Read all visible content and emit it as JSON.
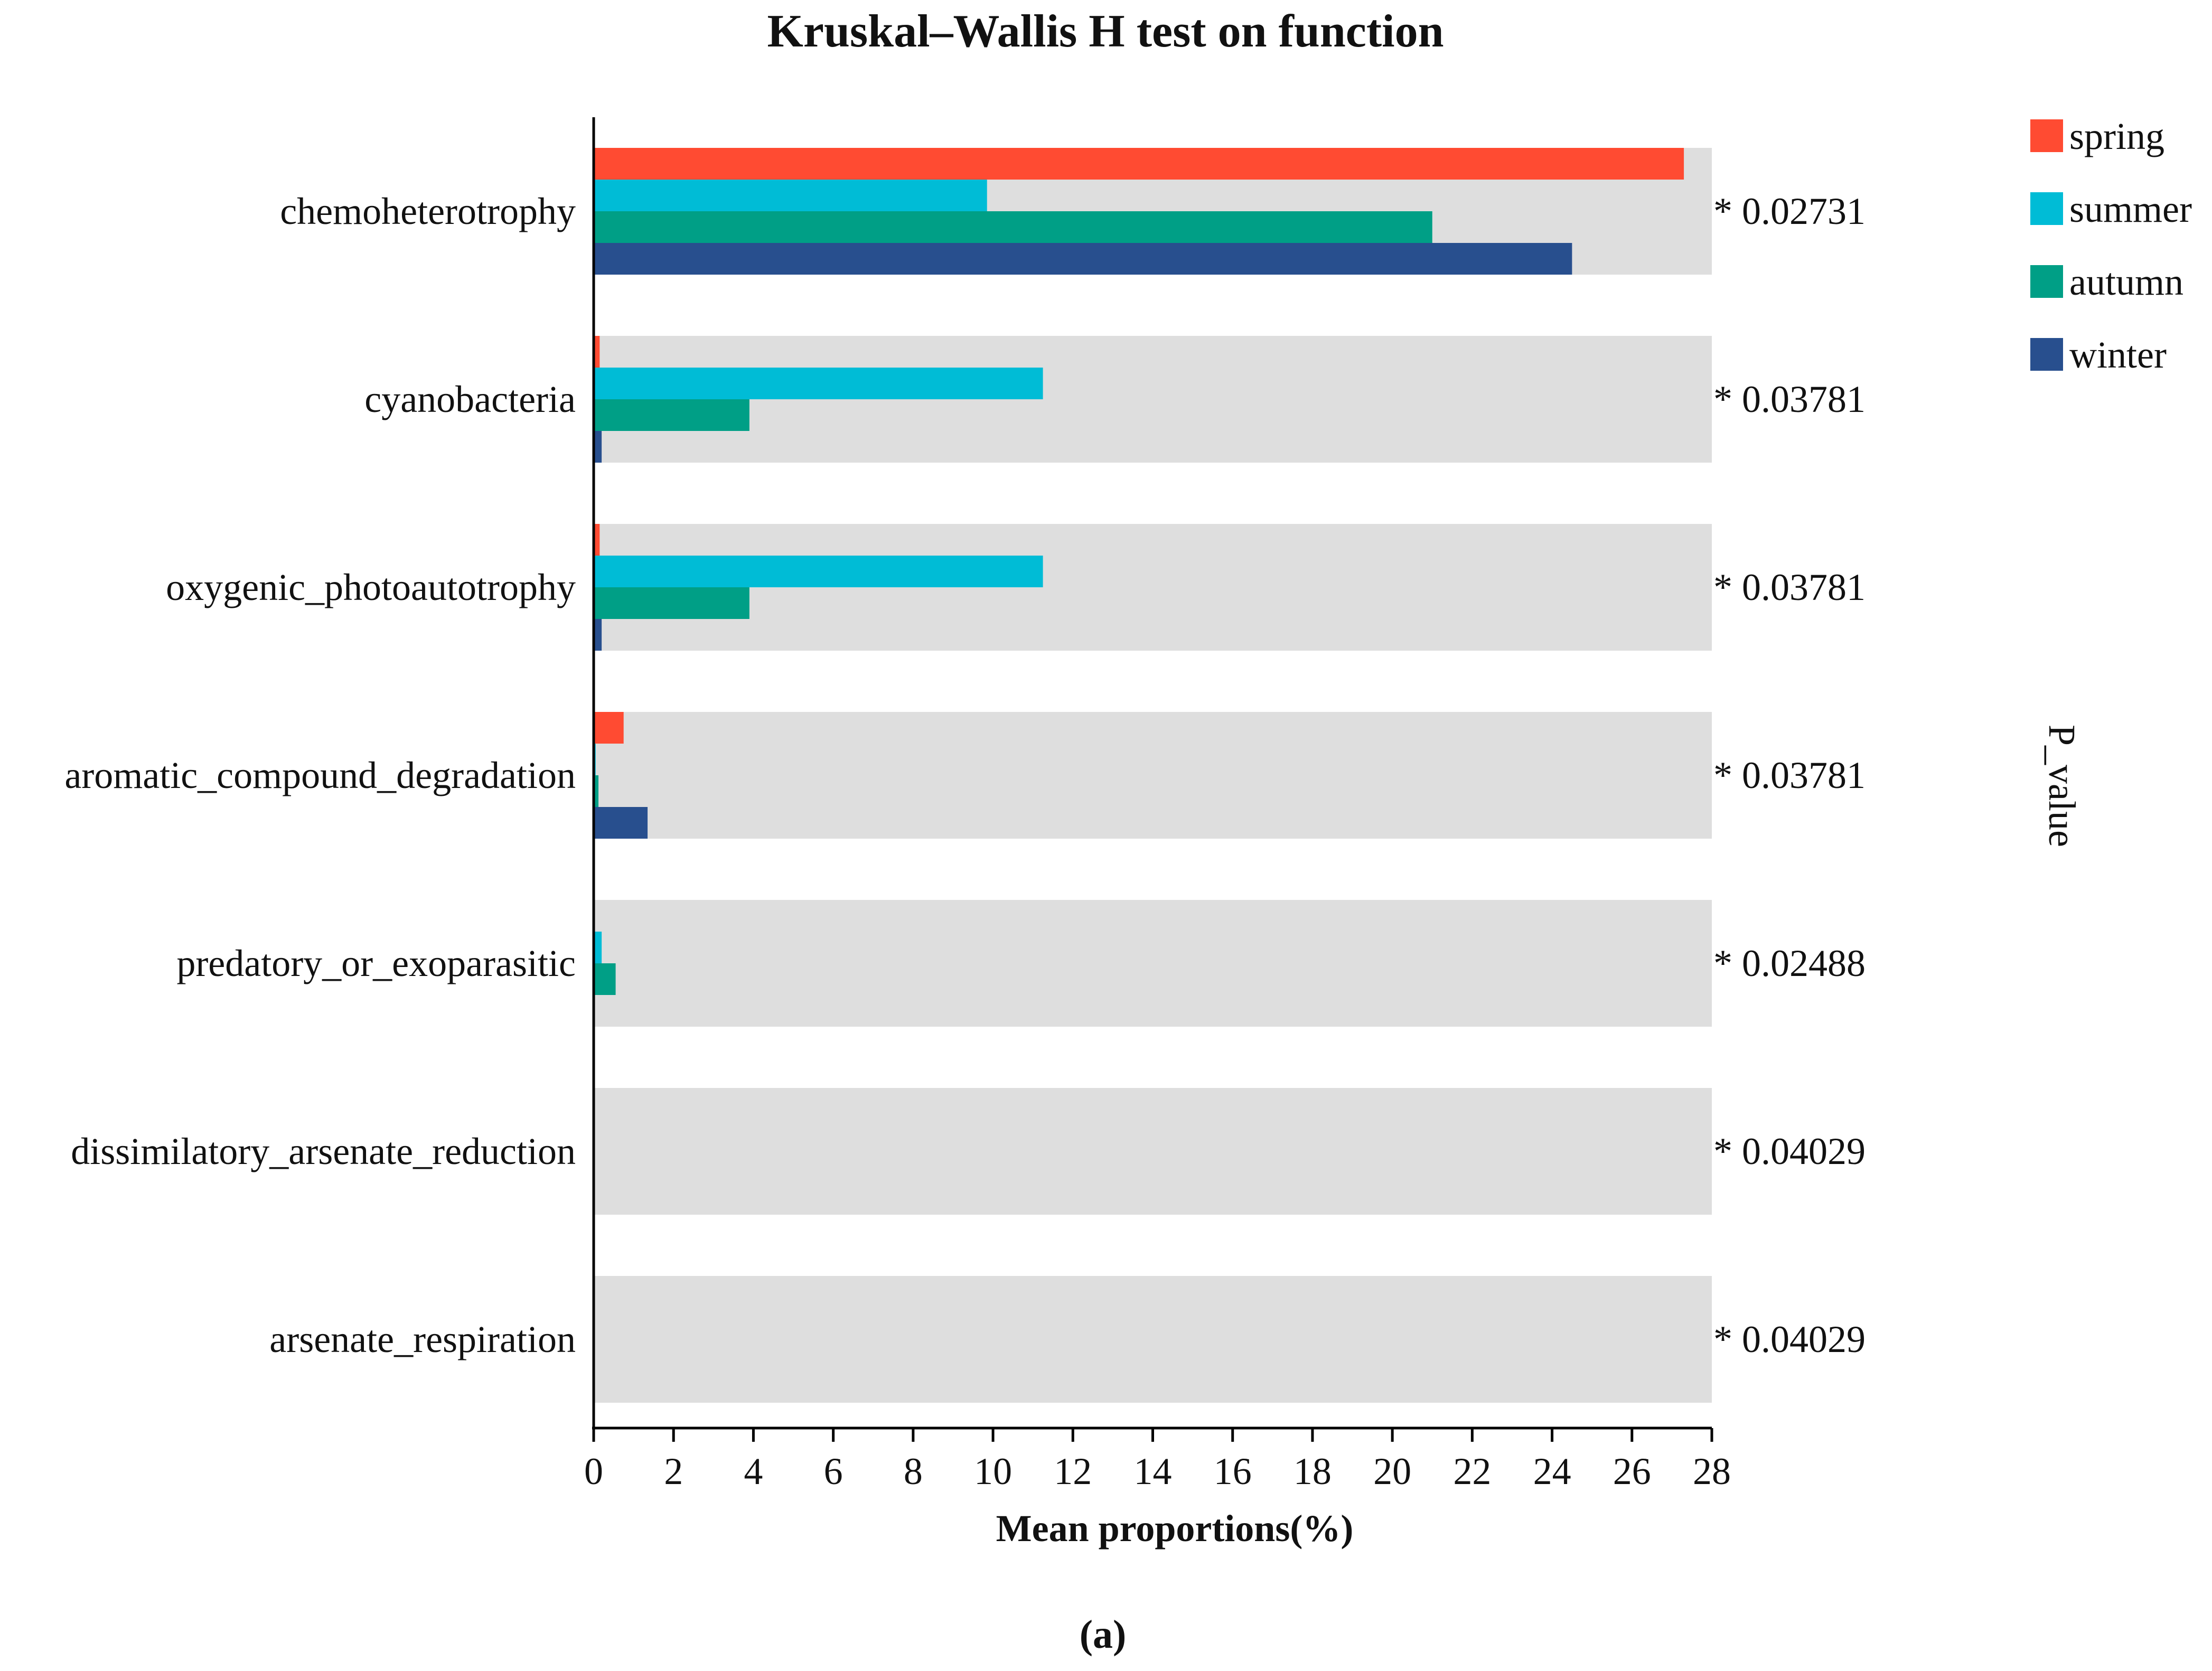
{
  "chart_data": {
    "type": "bar",
    "orientation": "horizontal",
    "title": "Kruskal–Wallis H test on function",
    "xlabel": "Mean proportions(%)",
    "ylabel": "",
    "side_label": "P_value",
    "caption": "(a)",
    "xlim": [
      0,
      28
    ],
    "xticks": [
      0,
      2,
      4,
      6,
      8,
      10,
      12,
      14,
      16,
      18,
      20,
      22,
      24,
      26,
      28
    ],
    "legend_position": "top-right",
    "categories": [
      "chemoheterotrophy",
      "cyanobacteria",
      "oxygenic_photoautotrophy",
      "aromatic_compound_degradation",
      "predatory_or_exoparasitic",
      "dissimilatory_arsenate_reduction",
      "arsenate_respiration"
    ],
    "series": [
      {
        "name": "spring",
        "color": "#ff4b32",
        "values": [
          27.3,
          0.15,
          0.15,
          0.75,
          0.0,
          0.0,
          0.0
        ]
      },
      {
        "name": "summer",
        "color": "#00bcd6",
        "values": [
          9.85,
          11.25,
          11.25,
          0.05,
          0.2,
          0.0,
          0.0
        ]
      },
      {
        "name": "autumn",
        "color": "#009f86",
        "values": [
          21.0,
          3.9,
          3.9,
          0.12,
          0.55,
          0.0,
          0.0
        ]
      },
      {
        "name": "winter",
        "color": "#284f8e",
        "values": [
          24.5,
          0.2,
          0.2,
          1.35,
          0.0,
          0.0,
          0.0
        ]
      }
    ],
    "p_values": [
      "* 0.02731",
      "* 0.03781",
      "* 0.03781",
      "* 0.03781",
      "* 0.02488",
      "* 0.04029",
      "* 0.04029"
    ],
    "band_color": "#dedede"
  }
}
